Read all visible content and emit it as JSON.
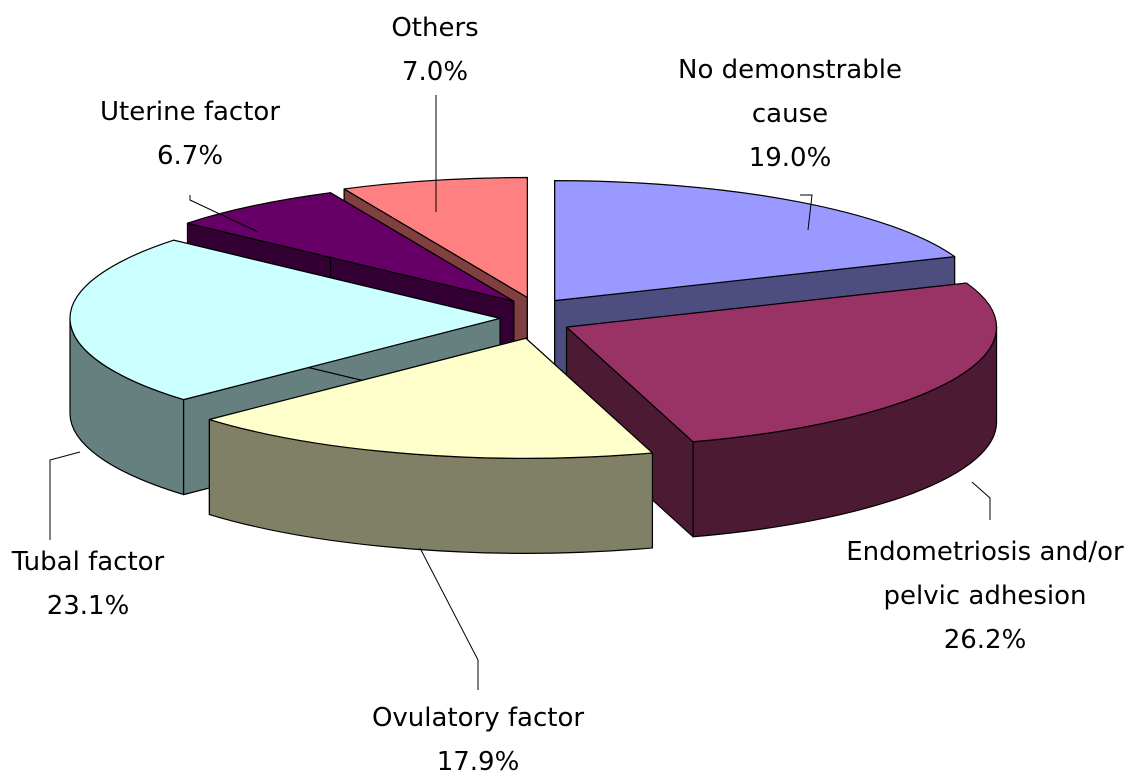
{
  "chart_data": {
    "type": "pie",
    "categories": [
      "No demonstrable cause",
      "Endometriosis and/or pelvic adhesion",
      "Ovulatory factor",
      "Tubal factor",
      "Uterine factor",
      "Others"
    ],
    "values": [
      19.0,
      26.2,
      17.9,
      23.1,
      6.7,
      7.0
    ],
    "value_labels": [
      "19.0%",
      "26.2%",
      "17.9%",
      "23.1%",
      "6.7%",
      "7.0%"
    ],
    "colors": [
      "#9999ff",
      "#993366",
      "#ffffcc",
      "#ccffff",
      "#660066",
      "#ff8080"
    ]
  }
}
